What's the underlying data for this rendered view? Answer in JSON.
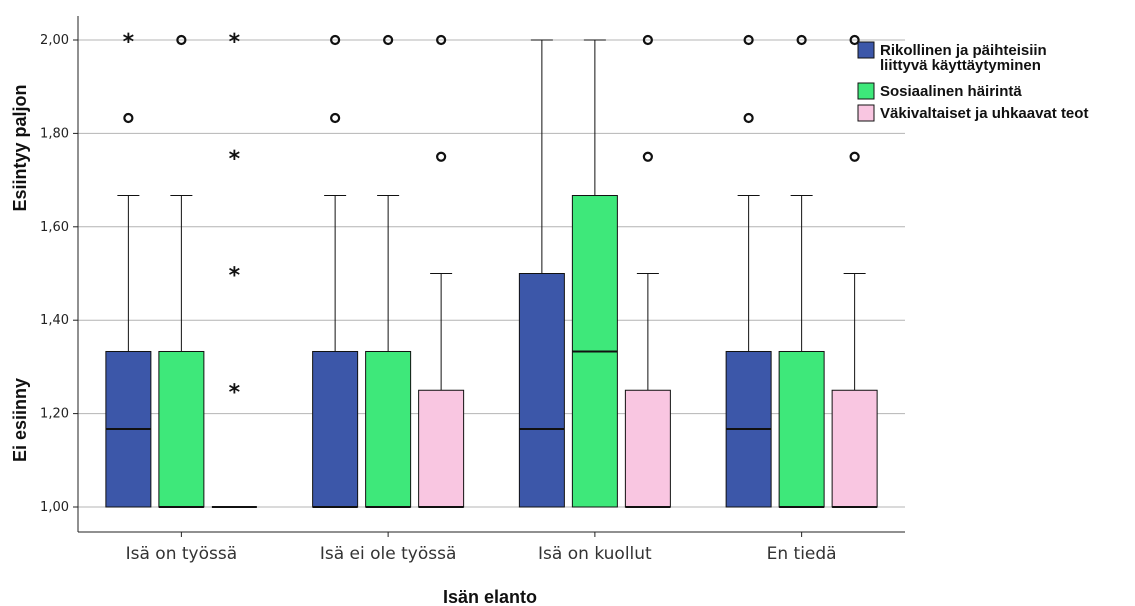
{
  "chart_data": {
    "type": "boxplot",
    "title": "",
    "xlabel": "Isän elanto",
    "ylabel_top": "Esiintyy paljon",
    "ylabel_bottom": "Ei esiinny",
    "ylim": [
      1.0,
      2.0
    ],
    "yticks": [
      1.0,
      1.2,
      1.4,
      1.6,
      1.8,
      2.0
    ],
    "ytick_labels": [
      "1,00",
      "1,20",
      "1,40",
      "1,60",
      "1,80",
      "2,00"
    ],
    "grid": true,
    "legend_position": "top-right",
    "categories": [
      "Isä on työssä",
      "Isä ei ole työssä",
      "Isä on kuollut",
      "En tiedä"
    ],
    "series": [
      {
        "name": "Rikollinen ja päihteisiin liittyvä käyttäytyminen",
        "legend_lines": [
          "Rikollinen ja päihteisiin",
          "liittyvä käyttäytyminen"
        ],
        "color": "#3c57a9",
        "boxes": [
          {
            "min": 1.0,
            "q1": 1.0,
            "median": 1.167,
            "q3": 1.333,
            "max": 1.667,
            "outliers": [
              1.833
            ],
            "extremes": [
              2.0
            ]
          },
          {
            "min": 1.0,
            "q1": 1.0,
            "median": 1.0,
            "q3": 1.333,
            "max": 1.667,
            "outliers": [
              1.833,
              2.0
            ],
            "extremes": []
          },
          {
            "min": 1.0,
            "q1": 1.0,
            "median": 1.167,
            "q3": 1.5,
            "max": 2.0,
            "outliers": [],
            "extremes": []
          },
          {
            "min": 1.0,
            "q1": 1.0,
            "median": 1.167,
            "q3": 1.333,
            "max": 1.667,
            "outliers": [
              1.833,
              2.0
            ],
            "extremes": []
          }
        ]
      },
      {
        "name": "Sosiaalinen häirintä",
        "legend_lines": [
          "Sosiaalinen häirintä"
        ],
        "color": "#3ee87a",
        "boxes": [
          {
            "min": 1.0,
            "q1": 1.0,
            "median": 1.0,
            "q3": 1.333,
            "max": 1.667,
            "outliers": [
              2.0
            ],
            "extremes": []
          },
          {
            "min": 1.0,
            "q1": 1.0,
            "median": 1.0,
            "q3": 1.333,
            "max": 1.667,
            "outliers": [
              2.0
            ],
            "extremes": []
          },
          {
            "min": 1.0,
            "q1": 1.0,
            "median": 1.333,
            "q3": 1.667,
            "max": 2.0,
            "outliers": [],
            "extremes": []
          },
          {
            "min": 1.0,
            "q1": 1.0,
            "median": 1.0,
            "q3": 1.333,
            "max": 1.667,
            "outliers": [
              2.0
            ],
            "extremes": []
          }
        ]
      },
      {
        "name": "Väkivaltaiset ja uhkaavat teot",
        "legend_lines": [
          "Väkivaltaiset ja uhkaavat teot"
        ],
        "color": "#f9c6e1",
        "boxes": [
          {
            "min": 1.0,
            "q1": 1.0,
            "median": 1.0,
            "q3": 1.0,
            "max": 1.0,
            "outliers": [],
            "extremes": [
              1.25,
              1.5,
              1.75,
              2.0
            ]
          },
          {
            "min": 1.0,
            "q1": 1.0,
            "median": 1.0,
            "q3": 1.25,
            "max": 1.5,
            "outliers": [
              1.75,
              2.0
            ],
            "extremes": []
          },
          {
            "min": 1.0,
            "q1": 1.0,
            "median": 1.0,
            "q3": 1.25,
            "max": 1.5,
            "outliers": [
              1.75,
              2.0
            ],
            "extremes": []
          },
          {
            "min": 1.0,
            "q1": 1.0,
            "median": 1.0,
            "q3": 1.25,
            "max": 1.5,
            "outliers": [
              1.75,
              2.0
            ],
            "extremes": []
          }
        ]
      }
    ]
  }
}
